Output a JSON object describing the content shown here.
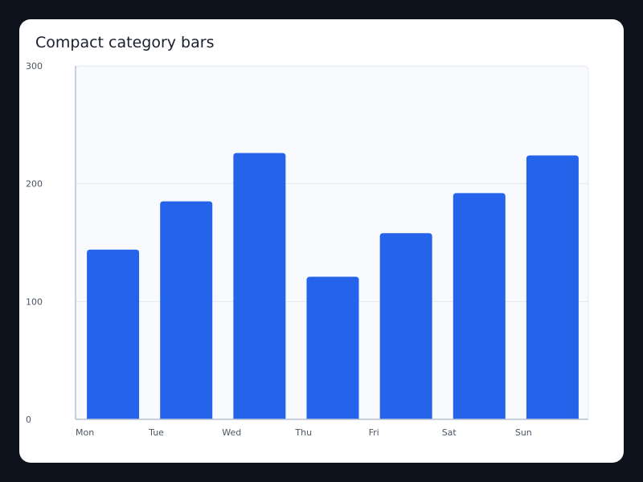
{
  "chart_data": {
    "type": "bar",
    "title": "Compact category bars",
    "xlabel": "",
    "ylabel": "",
    "categories": [
      "Mon",
      "Tue",
      "Wed",
      "Thu",
      "Fri",
      "Sat",
      "Sun"
    ],
    "values": [
      144,
      185,
      226,
      121,
      158,
      192,
      224
    ],
    "ylim": [
      0,
      300
    ],
    "yticks": [
      0,
      100,
      200,
      300
    ],
    "grid": true,
    "legend": "none",
    "colors": {
      "bar": "#2563eb",
      "plot_background": "#f8fafd",
      "grid": "#e3e8f0",
      "axis": "#b8c2d3"
    }
  }
}
